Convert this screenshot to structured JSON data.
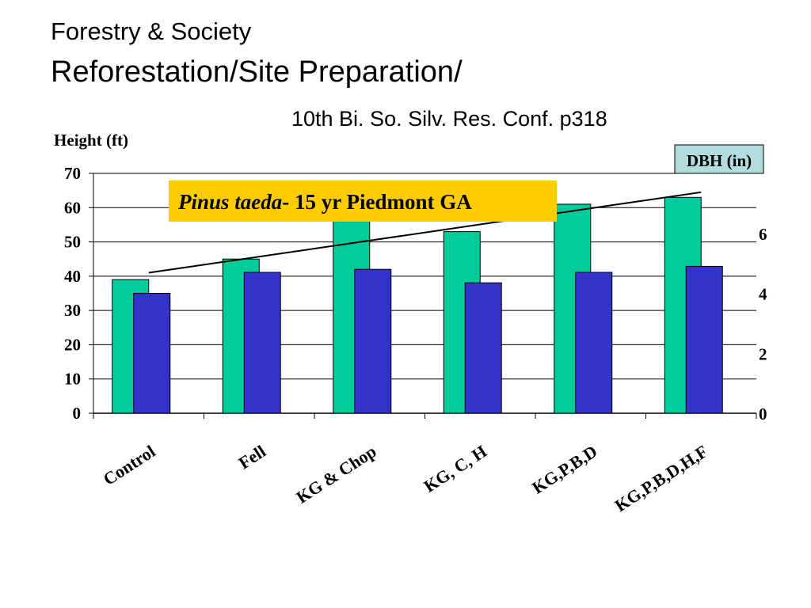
{
  "slide": {
    "title": "Forestry & Society",
    "subtitle": "Reforestation/Site Preparation/",
    "source": "10th Bi. So. Silv. Res. Conf. p318"
  },
  "colors": {
    "height_bar": "#00cc99",
    "dbh_bar": "#3333cc",
    "label_box": "#ffcc00",
    "dbh_box": "#b3dcdc"
  },
  "chart_data": {
    "type": "bar",
    "annotation": {
      "species": "Pinus taeda",
      "rest": "- 15 yr Piedmont GA"
    },
    "categories": [
      "Control",
      "Fell",
      "KG & Chop",
      "KG, C, H",
      "KG,P,B,D",
      "KG,P,B,D,H,F"
    ],
    "y_left": {
      "label": "Height (ft)",
      "lim": [
        0,
        70
      ],
      "ticks": [
        0,
        10,
        20,
        30,
        40,
        50,
        60,
        70
      ]
    },
    "y_right": {
      "label": "DBH (in)",
      "lim": [
        0,
        8
      ],
      "ticks": [
        0,
        2,
        4,
        6
      ]
    },
    "series": [
      {
        "axis": "left",
        "values": [
          39,
          45,
          56,
          53,
          61,
          63
        ]
      },
      {
        "axis": "right",
        "values": [
          4.0,
          4.7,
          4.8,
          4.35,
          4.7,
          4.9
        ]
      }
    ],
    "trend_line": {
      "axis": "left",
      "start": 41,
      "end": 64.5
    },
    "grid": true,
    "legend": "none"
  }
}
